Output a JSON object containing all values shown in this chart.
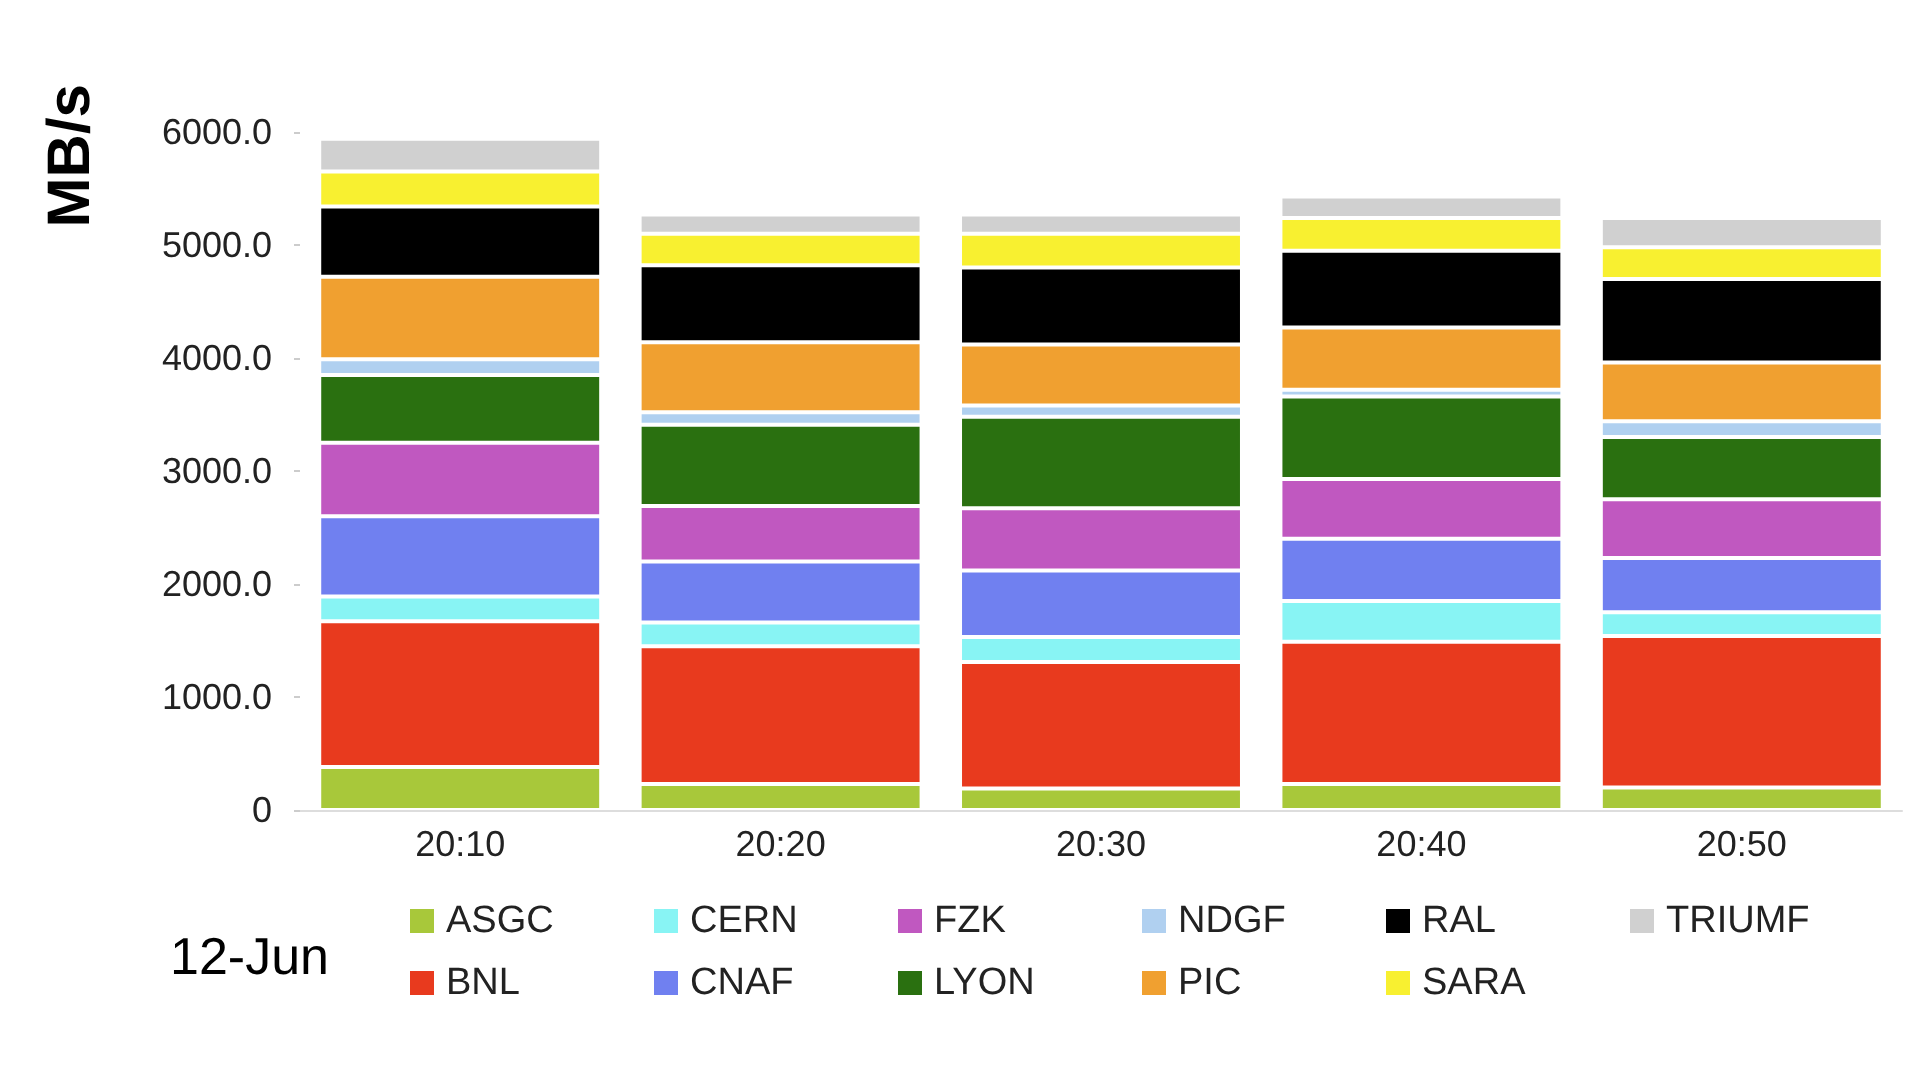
{
  "chart_data": {
    "type": "bar",
    "stacked": true,
    "ylabel": "MB/s",
    "categories": [
      "20:10",
      "20:20",
      "20:30",
      "20:40",
      "20:50"
    ],
    "series": [
      {
        "name": "ASGC",
        "color": "#a8c83a",
        "values": [
          380,
          230,
          190,
          230,
          200
        ]
      },
      {
        "name": "BNL",
        "color": "#e83a1e",
        "values": [
          1290,
          1220,
          1120,
          1260,
          1340
        ]
      },
      {
        "name": "CERN",
        "color": "#88f4f4",
        "values": [
          220,
          210,
          220,
          360,
          210
        ]
      },
      {
        "name": "CNAF",
        "color": "#7080f0",
        "values": [
          710,
          540,
          590,
          550,
          480
        ]
      },
      {
        "name": "FZK",
        "color": "#c058c0",
        "values": [
          650,
          490,
          550,
          530,
          520
        ]
      },
      {
        "name": "LYON",
        "color": "#2a7010",
        "values": [
          600,
          720,
          810,
          730,
          550
        ]
      },
      {
        "name": "NDGF",
        "color": "#b0d0f0",
        "values": [
          140,
          110,
          100,
          60,
          140
        ]
      },
      {
        "name": "PIC",
        "color": "#f0a030",
        "values": [
          730,
          620,
          540,
          550,
          520
        ]
      },
      {
        "name": "RAL",
        "color": "#000000",
        "values": [
          620,
          680,
          680,
          680,
          740
        ]
      },
      {
        "name": "SARA",
        "color": "#f8f030",
        "values": [
          310,
          280,
          300,
          290,
          280
        ]
      },
      {
        "name": "TRIUMF",
        "color": "#d0d0d0",
        "values": [
          290,
          170,
          170,
          190,
          260
        ]
      }
    ],
    "ylim": [
      0,
      6000
    ],
    "yticks": [
      0,
      {
        "value": 1000,
        "label": "1000.0"
      },
      {
        "value": 2000,
        "label": "2000.0"
      },
      {
        "value": 3000,
        "label": "3000.0"
      },
      {
        "value": 4000,
        "label": "4000.0"
      },
      {
        "value": 5000,
        "label": "5000.0"
      },
      {
        "value": 6000,
        "label": "6000.0"
      }
    ],
    "legend": "bottom",
    "annotations": [
      "12-Jun"
    ]
  }
}
